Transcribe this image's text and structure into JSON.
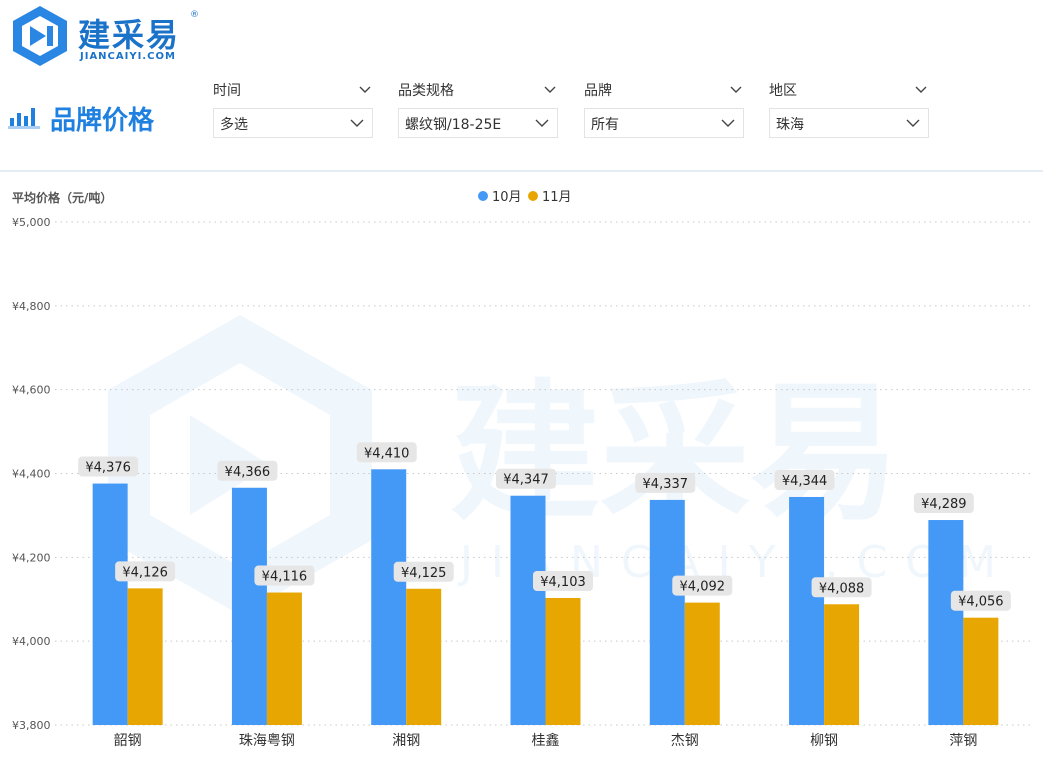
{
  "header": {
    "logo_text": "建采易",
    "logo_sub": "JIANCAIYI.COM",
    "logo_reg": "®",
    "page_title": "品牌价格"
  },
  "filters": [
    {
      "label": "时间",
      "value": "多选"
    },
    {
      "label": "品类规格",
      "value": "螺纹钢/18-25E"
    },
    {
      "label": "品牌",
      "value": "所有"
    },
    {
      "label": "地区",
      "value": "珠海"
    }
  ],
  "colors": {
    "series_oct": "#4499f7",
    "series_nov": "#e8a602",
    "brand": "#1a73c9"
  },
  "chart_data": {
    "type": "bar",
    "ylabel": "平均价格（元/吨）",
    "ylim": [
      3800,
      5000
    ],
    "yticks": [
      3800,
      4000,
      4200,
      4400,
      4600,
      4800,
      5000
    ],
    "ytick_labels": [
      "¥3,800",
      "¥4,000",
      "¥4,200",
      "¥4,400",
      "¥4,600",
      "¥4,800",
      "¥5,000"
    ],
    "legend_position": "top-center",
    "grid": true,
    "categories": [
      "韶钢",
      "珠海粤钢",
      "湘钢",
      "桂鑫",
      "杰钢",
      "柳钢",
      "萍钢"
    ],
    "series": [
      {
        "name": "10月",
        "values": [
          4376,
          4366,
          4410,
          4347,
          4337,
          4344,
          4289
        ],
        "labels": [
          "¥4,376",
          "¥4,366",
          "¥4,410",
          "¥4,347",
          "¥4,337",
          "¥4,344",
          "¥4,289"
        ]
      },
      {
        "name": "11月",
        "values": [
          4126,
          4116,
          4125,
          4103,
          4092,
          4088,
          4056
        ],
        "labels": [
          "¥4,126",
          "¥4,116",
          "¥4,125",
          "¥4,103",
          "¥4,092",
          "¥4,088",
          "¥4,056"
        ]
      }
    ]
  }
}
